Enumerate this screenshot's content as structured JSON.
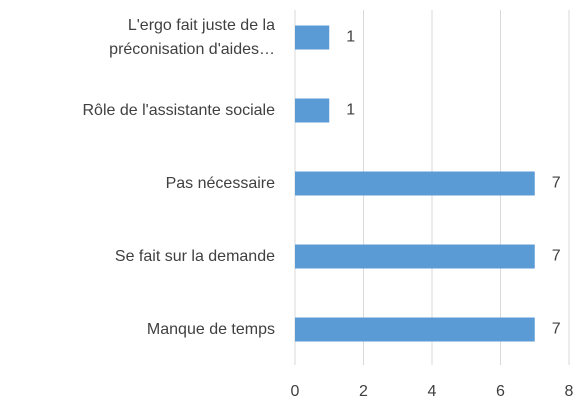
{
  "chart_data": {
    "type": "bar",
    "orientation": "horizontal",
    "categories": [
      "L'ergo fait juste de la\npréconisation d'aides…",
      "Rôle de l'assistante sociale",
      "Pas nécessaire",
      "Se fait sur la demande",
      "Manque de temps"
    ],
    "values": [
      1,
      1,
      7,
      7,
      7
    ],
    "color": "#5b9bd5",
    "xlim": [
      0,
      8
    ],
    "xticks": [
      0,
      2,
      4,
      6,
      8
    ],
    "grid": true,
    "data_labels": true
  }
}
